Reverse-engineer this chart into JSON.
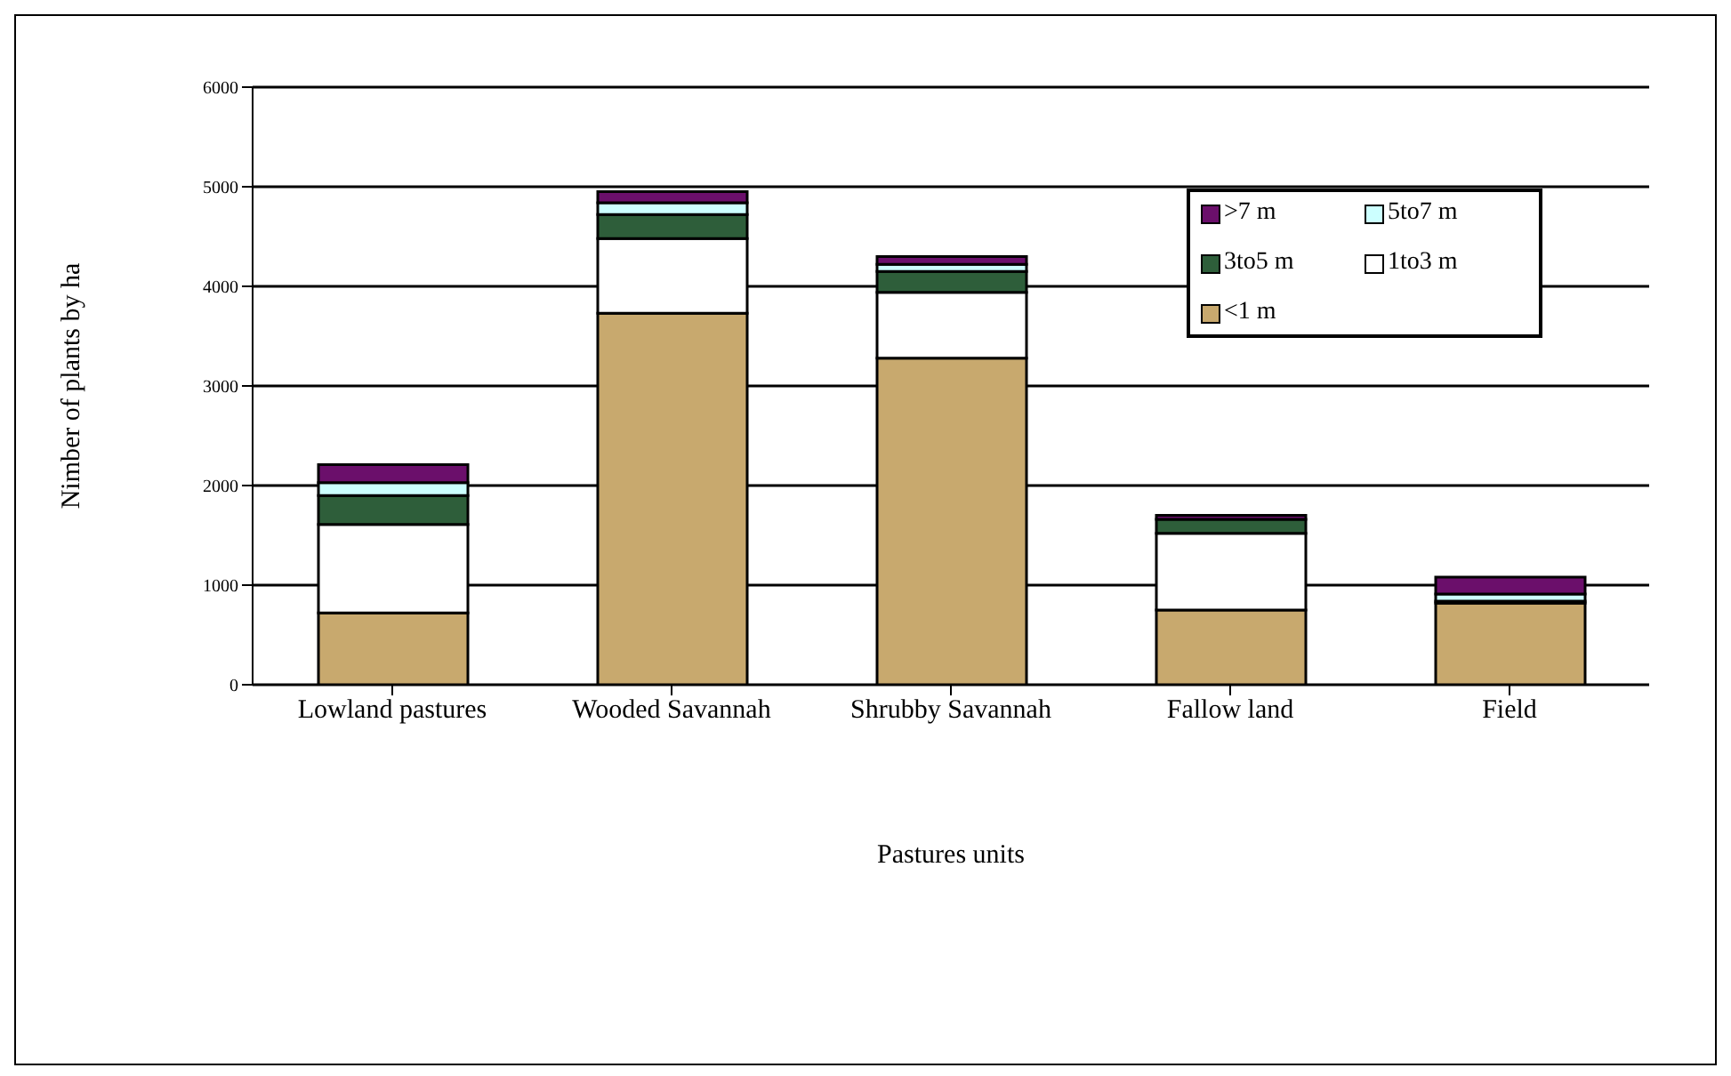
{
  "chart_data": {
    "type": "bar",
    "stacked": true,
    "xlabel": "Pastures units",
    "ylabel": "Nimber of plants by ha",
    "categories": [
      "Lowland pastures",
      "Wooded Savannah",
      "Shrubby Savannah",
      "Fallow land",
      "Field"
    ],
    "series": [
      {
        "name": "<1 m",
        "color": "#c8a96e",
        "values": [
          720,
          3730,
          3280,
          750,
          820
        ]
      },
      {
        "name": "1to3 m",
        "color": "#ffffff",
        "values": [
          890,
          750,
          660,
          770,
          0
        ]
      },
      {
        "name": "3to5 m",
        "color": "#2e5e3a",
        "values": [
          290,
          240,
          210,
          140,
          20
        ]
      },
      {
        "name": "5to7 m",
        "color": "#ccffff",
        "values": [
          130,
          120,
          70,
          null,
          70
        ]
      },
      {
        "name": ">7 m",
        "color": "#6b0f6b",
        "values": [
          180,
          110,
          80,
          40,
          170
        ]
      }
    ],
    "ylim": [
      0,
      6000
    ],
    "yticks": [
      0,
      1000,
      2000,
      3000,
      4000,
      5000,
      6000
    ],
    "grid": "y",
    "legend": "top right"
  }
}
